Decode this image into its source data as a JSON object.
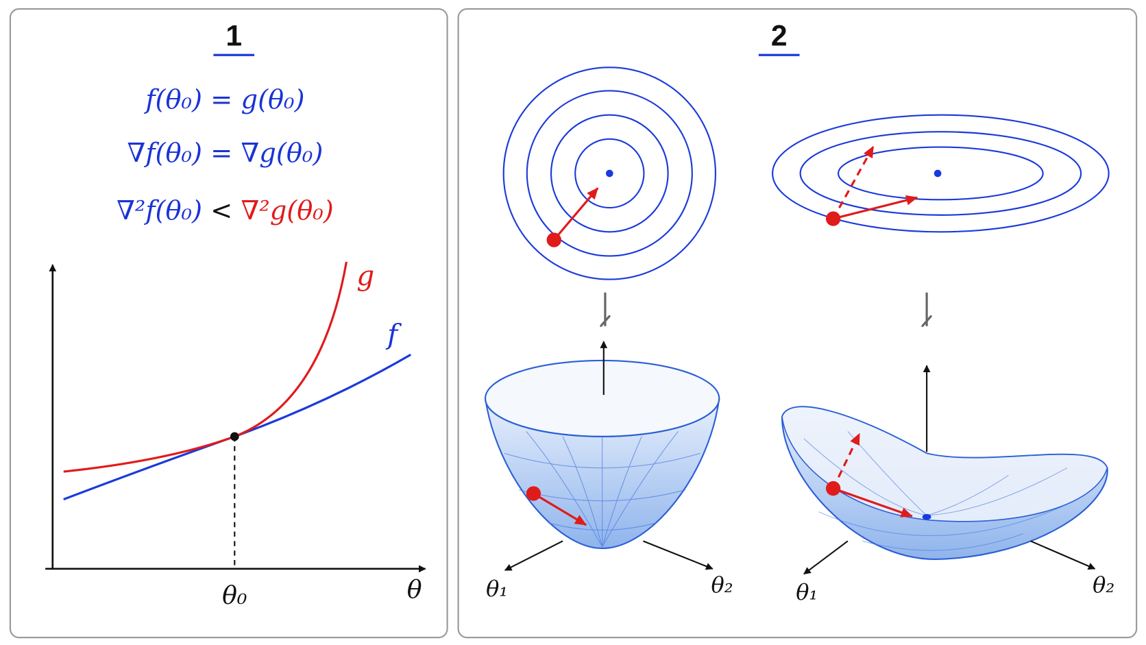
{
  "panels": [
    {
      "title": "1",
      "equations": [
        "f(θ₀) = g(θ₀)",
        "∇f(θ₀) = ∇g(θ₀)"
      ],
      "inequality": {
        "left": "∇²f(θ₀)",
        "op": "<",
        "right": "∇²g(θ₀)"
      },
      "curve_labels": {
        "g": "g",
        "f": "f"
      },
      "axis_labels": {
        "tick": "θ₀",
        "x": "θ"
      }
    },
    {
      "title": "2",
      "surfaces": [
        {
          "axis_labels": [
            "θ₁",
            "θ₂"
          ]
        },
        {
          "axis_labels": [
            "θ₁",
            "θ₂"
          ]
        }
      ]
    }
  ]
}
